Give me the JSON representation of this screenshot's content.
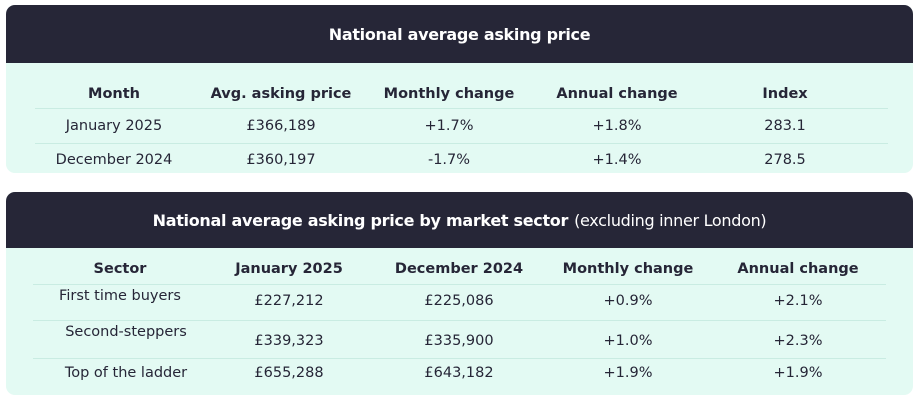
{
  "table1": {
    "title": "National average asking price",
    "headers": [
      "Month",
      "Avg. asking price",
      "Monthly change",
      "Annual change",
      "Index"
    ],
    "rows": [
      [
        "January 2025",
        "£366,189",
        "+1.7%",
        "+1.8%",
        "283.1"
      ],
      [
        "December 2024",
        "£360,197",
        "-1.7%",
        "+1.4%",
        "278.5"
      ]
    ]
  },
  "table2": {
    "title": "National average asking price by market sector",
    "subtitle": "(excluding inner London)",
    "headers": [
      "Sector",
      "January 2025",
      "December 2024",
      "Monthly change",
      "Annual change"
    ],
    "rows": [
      [
        "First time buyers",
        "£227,212",
        "£225,086",
        "+0.9%",
        "+2.1%"
      ],
      [
        "Second-steppers",
        "£339,323",
        "£335,900",
        "+1.0%",
        "+2.3%"
      ],
      [
        "Top of the ladder",
        "£655,288",
        "£643,182",
        "+1.9%",
        "+1.9%"
      ]
    ]
  },
  "colors": {
    "header_bg": "#262637",
    "panel_bg": "#e3faf3",
    "divider": "#c9ece2",
    "text": "#262637"
  }
}
